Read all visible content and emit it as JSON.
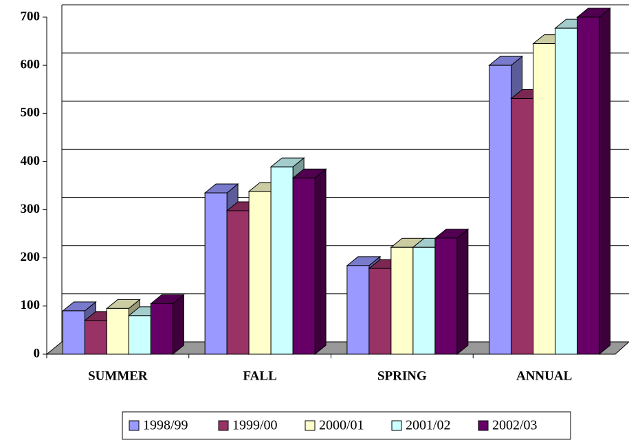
{
  "chart_data": {
    "type": "bar3d",
    "categories": [
      "SUMMER",
      "FALL",
      "SPRING",
      "ANNUAL"
    ],
    "series": [
      {
        "name": "1998/99",
        "color": "#9999ff",
        "values": [
          90,
          335,
          184,
          600
        ]
      },
      {
        "name": "1999/00",
        "color": "#993366",
        "values": [
          70,
          298,
          178,
          531
        ]
      },
      {
        "name": "2000/01",
        "color": "#ffffcc",
        "values": [
          95,
          338,
          222,
          645
        ]
      },
      {
        "name": "2001/02",
        "color": "#ccffff",
        "values": [
          80,
          389,
          222,
          677
        ]
      },
      {
        "name": "2002/03",
        "color": "#660066",
        "values": [
          105,
          366,
          241,
          700
        ]
      }
    ],
    "ylim": [
      0,
      700
    ],
    "yticks": [
      0,
      100,
      200,
      300,
      400,
      500,
      600,
      700
    ],
    "grid": true
  }
}
